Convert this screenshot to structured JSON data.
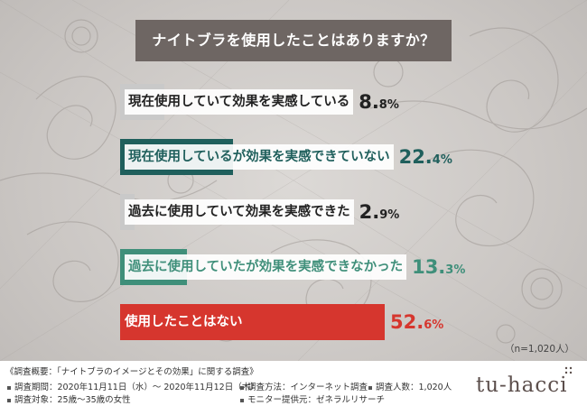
{
  "title": "ナイトブラを使用したことはありますか？",
  "n_note": "（n=1,020人）",
  "colors": {
    "title_bg": "#6e6663",
    "neutral_bar": "#c9c9c9",
    "teal_dark": "#1f5f5c",
    "teal_light": "#3f8f7a",
    "red": "#d6362e"
  },
  "chart_data": {
    "type": "bar",
    "orientation": "horizontal",
    "title": "ナイトブラを使用したことはありますか？",
    "categories": [
      "現在使用していて効果を実感している",
      "現在使用しているが効果を実感できていない",
      "過去に使用していて効果を実感できた",
      "過去に使用していたが効果を実感できなかった",
      "使用したことはない"
    ],
    "values": [
      8.8,
      22.4,
      2.9,
      13.3,
      52.6
    ],
    "value_labels": [
      {
        "num": "8.",
        "dec": "8%"
      },
      {
        "num": "22.",
        "dec": "4%"
      },
      {
        "num": "2.",
        "dec": "9%"
      },
      {
        "num": "13.",
        "dec": "3%"
      },
      {
        "num": "52.",
        "dec": "6%"
      }
    ],
    "bar_colors": [
      "#c9c9c9",
      "#1f5f5c",
      "#c9c9c9",
      "#3f8f7a",
      "#d6362e"
    ],
    "label_colors": [
      "#222222",
      "#1f5f5c",
      "#222222",
      "#3f8f7a",
      "#ffffff"
    ],
    "value_colors": [
      "#222222",
      "#1f5f5c",
      "#222222",
      "#3f8f7a",
      "#d6362e"
    ],
    "xlim": [
      0,
      52.6
    ],
    "grid": false,
    "legend": "none"
  },
  "footer": {
    "survey_head": "《調査概要：「ナイトブラのイメージとその効果」に関する調査》",
    "items": [
      "調査期間：2020年11月11日（水）～ 2020年11月12日（木）",
      "調査方法：インターネット調査",
      "調査人数：1,020人",
      "調査対象：25歳～35歳の女性",
      "モニター提供元：ゼネラルリサーチ"
    ]
  },
  "logo": "tu-hacci"
}
